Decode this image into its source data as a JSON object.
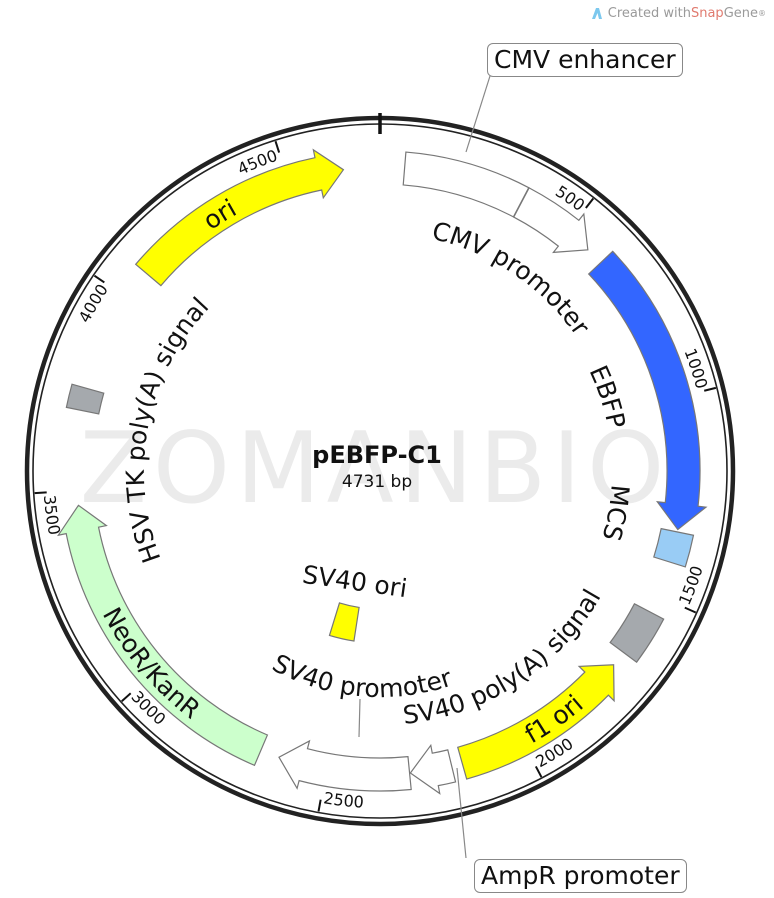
{
  "branding": {
    "prefix": "Created with ",
    "brand_red": "Snap",
    "brand_gray": "Gene",
    "mark": "®",
    "icon": "snapgene-logo-icon"
  },
  "watermark": "ZOMANBIO",
  "map": {
    "name": "pEBFP-C1",
    "length_label": "4731 bp",
    "length": 4731
  },
  "ticks": [
    {
      "bp": 500,
      "label": "500"
    },
    {
      "bp": 1000,
      "label": "1000"
    },
    {
      "bp": 1500,
      "label": "1500"
    },
    {
      "bp": 2000,
      "label": "2000"
    },
    {
      "bp": 2500,
      "label": "2500"
    },
    {
      "bp": 3000,
      "label": "3000"
    },
    {
      "bp": 3500,
      "label": "3500"
    },
    {
      "bp": 4000,
      "label": "4000"
    },
    {
      "bp": 4500,
      "label": "4500"
    }
  ],
  "features": [
    {
      "name": "CMV enhancer",
      "start": 61,
      "end": 364,
      "direction": "none",
      "color": "#ffffff"
    },
    {
      "name": "CMV promoter",
      "start": 365,
      "end": 568,
      "direction": "forward",
      "color": "#ffffff"
    },
    {
      "name": "EBFP",
      "start": 613,
      "end": 1329,
      "direction": "forward",
      "color": "#3366ff"
    },
    {
      "name": "MCS",
      "start": 1335,
      "end": 1412,
      "direction": "none",
      "color": "#99ccf5"
    },
    {
      "name": "SV40 poly(A) signal",
      "start": 1545,
      "end": 1665,
      "direction": "none",
      "color": "#a5a9ad"
    },
    {
      "name": "f1 ori",
      "start": 1704,
      "end": 2159,
      "direction": "reverse",
      "color": "#ffff00"
    },
    {
      "name": "AmpR promoter",
      "start": 2186,
      "end": 2290,
      "direction": "forward",
      "color": "#ffffff"
    },
    {
      "name": "SV40 promoter",
      "start": 2292,
      "end": 2621,
      "direction": "forward",
      "color": "#ffffff"
    },
    {
      "name": "SV40 ori",
      "start": 2480,
      "end": 2590,
      "direction": "none",
      "color": "#ffff00"
    },
    {
      "name": "NeoR/KanR",
      "start": 2669,
      "end": 3463,
      "direction": "forward",
      "color": "#ccffcc"
    },
    {
      "name": "HSV TK poly(A) signal",
      "start": 3699,
      "end": 3755,
      "direction": "none",
      "color": "#a5a9ad"
    },
    {
      "name": "ori",
      "start": 4077,
      "end": 4640,
      "direction": "forward",
      "color": "#ffff00"
    }
  ]
}
